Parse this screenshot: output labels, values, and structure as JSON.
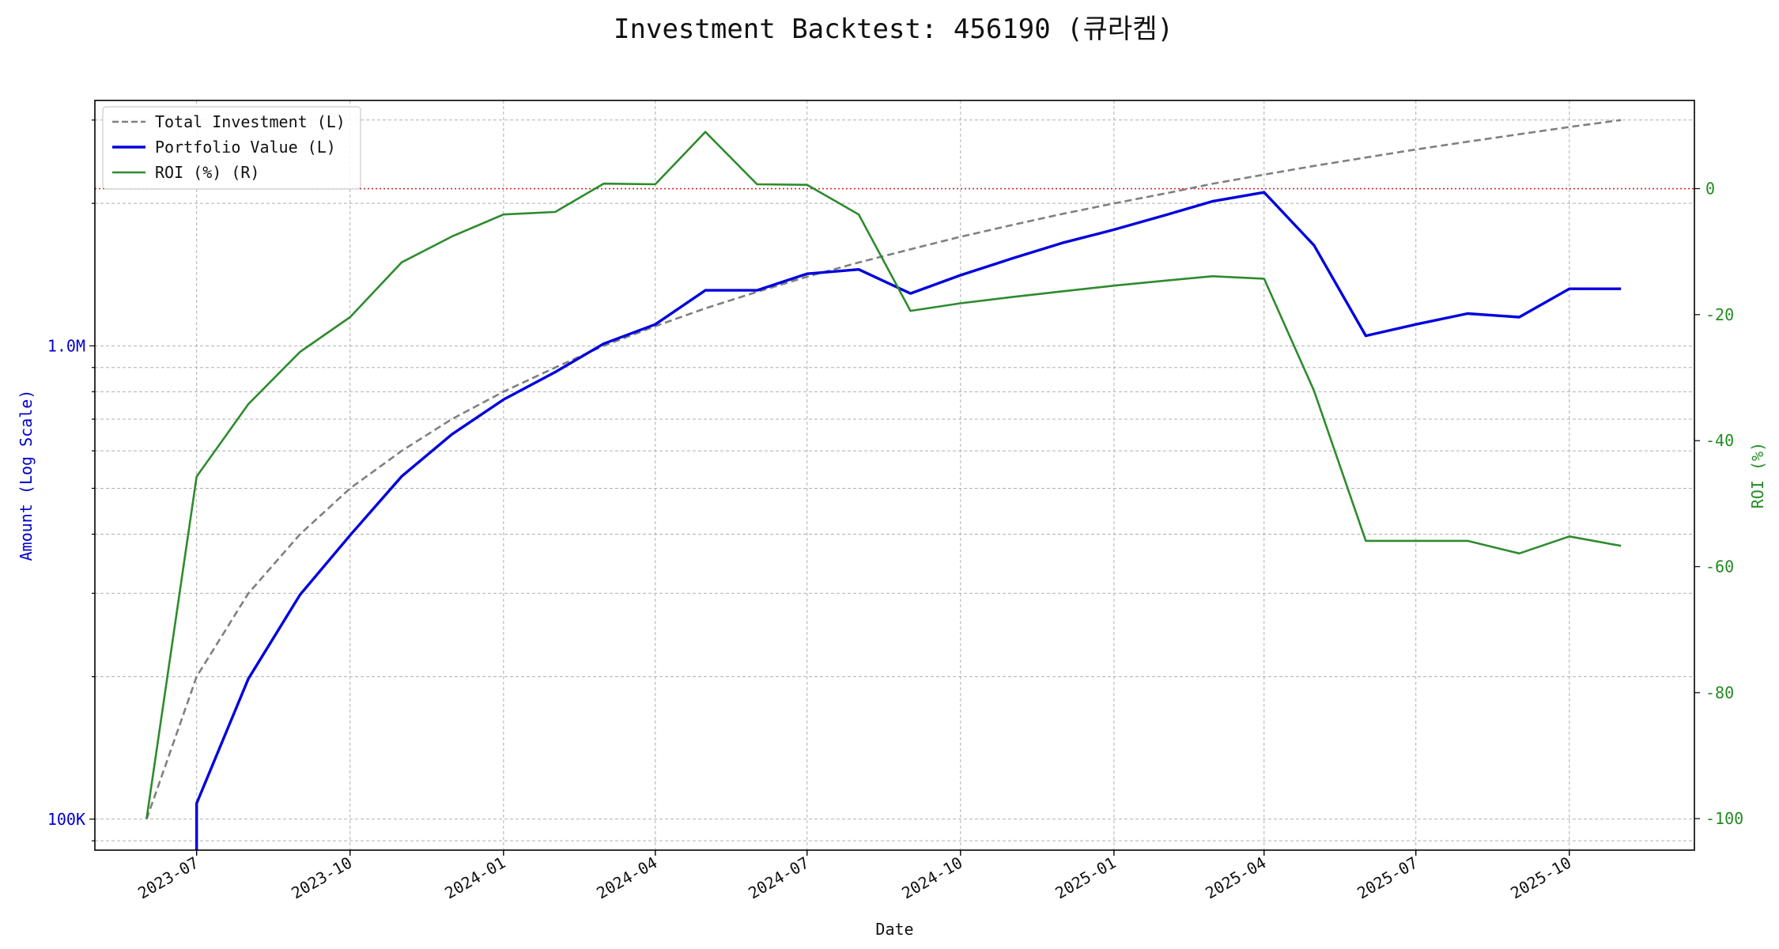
{
  "chart_data": {
    "type": "line",
    "title": "Investment Backtest: 456190 (큐라켐)",
    "xlabel": "Date",
    "ylabel_left": "Amount (Log Scale)",
    "ylabel_right": "ROI (%)",
    "left_axis": {
      "scale": "log",
      "ylim": [
        86000,
        3300000
      ],
      "tick_values": [
        100000,
        1000000
      ],
      "tick_labels": [
        "100K",
        "1.0M"
      ]
    },
    "right_axis": {
      "ylim": [
        -105,
        14
      ],
      "ticks": [
        -100,
        -80,
        -60,
        -40,
        -20,
        0
      ]
    },
    "x_range": [
      "2023-05-01",
      "2025-12-15"
    ],
    "x_ticks": [
      "2023-07-01",
      "2023-10-01",
      "2024-01-01",
      "2024-04-01",
      "2024-07-01",
      "2024-10-01",
      "2025-01-01",
      "2025-04-01",
      "2025-07-01",
      "2025-10-01"
    ],
    "x_tick_labels": [
      "2023-07",
      "2023-10",
      "2024-01",
      "2024-04",
      "2024-07",
      "2024-10",
      "2025-01",
      "2025-04",
      "2025-07",
      "2025-10"
    ],
    "grid": true,
    "legend_position": "top-left",
    "reference_line": {
      "axis": "right",
      "value": 0,
      "color": "#d62728",
      "style": "dotted"
    },
    "colors": {
      "investment": "#808080",
      "portfolio": "#0000dd",
      "roi": "#2e8b2e",
      "left_axis": "#0000cc",
      "right_axis": "#228b22"
    },
    "series": [
      {
        "name": "Total Investment (L)",
        "axis": "left",
        "style": "dashed",
        "x": [
          "2023-06-01",
          "2023-07-01",
          "2023-08-01",
          "2023-09-01",
          "2023-10-01",
          "2023-11-01",
          "2023-12-01",
          "2024-01-01",
          "2024-02-01",
          "2024-03-01",
          "2024-04-01",
          "2024-05-01",
          "2024-06-01",
          "2024-07-01",
          "2024-08-01",
          "2024-09-01",
          "2024-10-01",
          "2024-11-01",
          "2024-12-01",
          "2025-01-01",
          "2025-02-01",
          "2025-03-01",
          "2025-04-01",
          "2025-05-01",
          "2025-06-01",
          "2025-07-01",
          "2025-08-01",
          "2025-09-01",
          "2025-10-01",
          "2025-11-01"
        ],
        "values": [
          100000,
          200000,
          300000,
          400000,
          500000,
          600000,
          700000,
          800000,
          900000,
          1000000,
          1100000,
          1200000,
          1300000,
          1400000,
          1500000,
          1600000,
          1700000,
          1800000,
          1900000,
          2000000,
          2100000,
          2200000,
          2300000,
          2400000,
          2500000,
          2600000,
          2700000,
          2800000,
          2900000,
          3000000
        ]
      },
      {
        "name": "Portfolio Value (L)",
        "axis": "left",
        "style": "solid",
        "x": [
          "2023-07-01",
          "2023-08-01",
          "2023-09-01",
          "2023-10-01",
          "2023-11-01",
          "2023-12-01",
          "2024-01-01",
          "2024-02-01",
          "2024-03-01",
          "2024-04-01",
          "2024-05-01",
          "2024-06-01",
          "2024-07-01",
          "2024-08-01",
          "2024-09-01",
          "2024-10-01",
          "2024-11-01",
          "2024-12-01",
          "2025-01-01",
          "2025-02-01",
          "2025-03-01",
          "2025-04-01",
          "2025-05-01",
          "2025-06-01",
          "2025-07-01",
          "2025-08-01",
          "2025-09-01",
          "2025-10-01",
          "2025-11-01"
        ],
        "values": [
          108000,
          198000,
          298000,
          398000,
          530000,
          650000,
          770000,
          880000,
          1010000,
          1110000,
          1310000,
          1310000,
          1420000,
          1450000,
          1290000,
          1410000,
          1530000,
          1650000,
          1760000,
          1890000,
          2020000,
          2110000,
          1630000,
          1050000,
          1110000,
          1170000,
          1150000,
          1320000,
          1320000
        ]
      },
      {
        "name": "ROI (%) (R)",
        "axis": "right",
        "style": "solid",
        "x": [
          "2023-06-01",
          "2023-07-01",
          "2023-08-01",
          "2023-09-01",
          "2023-10-01",
          "2023-11-01",
          "2023-12-01",
          "2024-01-01",
          "2024-02-01",
          "2024-03-01",
          "2024-04-01",
          "2024-05-01",
          "2024-06-01",
          "2024-07-01",
          "2024-08-01",
          "2024-09-01",
          "2024-10-01",
          "2024-11-01",
          "2024-12-01",
          "2025-01-01",
          "2025-02-01",
          "2025-03-01",
          "2025-04-01",
          "2025-05-01",
          "2025-06-01",
          "2025-07-01",
          "2025-08-01",
          "2025-09-01",
          "2025-10-01",
          "2025-11-01"
        ],
        "values": [
          -100,
          -45.7,
          -34.2,
          -25.9,
          -20.4,
          -11.7,
          -7.6,
          -4.1,
          -3.7,
          0.8,
          0.7,
          9,
          0.7,
          0.6,
          -4.1,
          -19.4,
          -18.2,
          -17.2,
          -16.3,
          -15.4,
          -14.6,
          -13.9,
          -14.3,
          -32.1,
          -55.9,
          -55.9,
          -55.9,
          -57.9,
          -55.2,
          -56.7
        ]
      }
    ]
  }
}
